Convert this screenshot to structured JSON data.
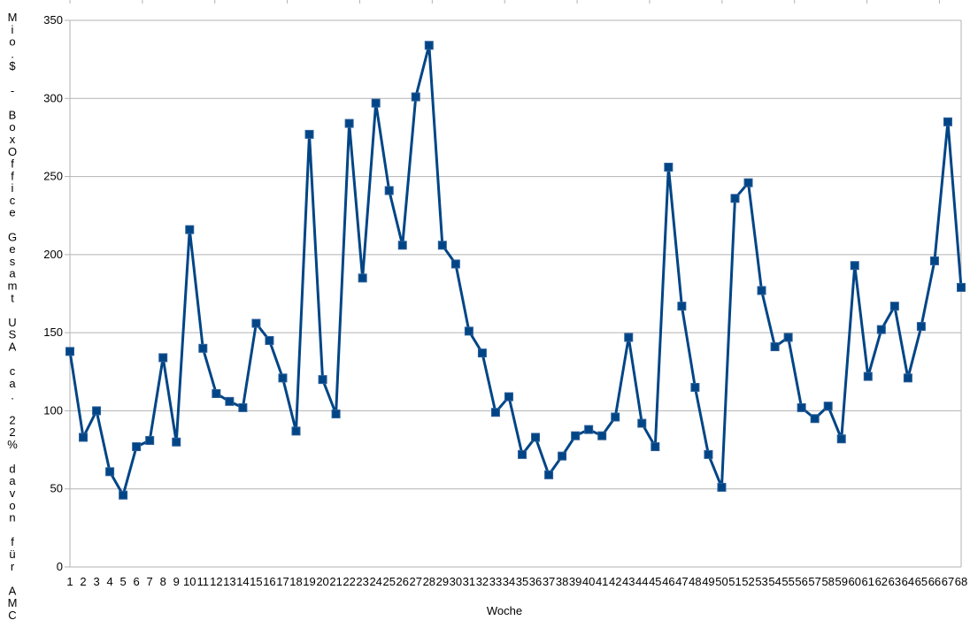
{
  "chart_data": {
    "type": "line",
    "xlabel": "Woche",
    "ylabel": "Mio.$ - BoxOffice Gesamt USA ca. 22% davon für AMC",
    "ylim": [
      0,
      350
    ],
    "yticks": [
      0,
      50,
      100,
      150,
      200,
      250,
      300,
      350
    ],
    "grid": "horizontal",
    "legend": "none",
    "line_color": "#004586",
    "categories": [
      "1",
      "2",
      "3",
      "4",
      "5",
      "6",
      "7",
      "8",
      "9",
      "10",
      "11",
      "12",
      "13",
      "14",
      "15",
      "16",
      "17",
      "18",
      "19",
      "20",
      "21",
      "22",
      "23",
      "24",
      "25",
      "26",
      "27",
      "28",
      "29",
      "30",
      "31",
      "32",
      "33",
      "34",
      "35",
      "36",
      "37",
      "38",
      "39",
      "40",
      "41",
      "42",
      "43",
      "44",
      "45",
      "46",
      "47",
      "48",
      "49",
      "50",
      "51",
      "52",
      "53",
      "54",
      "55",
      "56",
      "57",
      "58",
      "59",
      "60",
      "61",
      "62",
      "63",
      "64",
      "65",
      "66",
      "67",
      "68"
    ],
    "values": [
      138,
      83,
      100,
      61,
      46,
      77,
      81,
      134,
      80,
      216,
      140,
      111,
      106,
      102,
      156,
      145,
      121,
      87,
      277,
      120,
      98,
      284,
      185,
      297,
      241,
      206,
      301,
      334,
      206,
      194,
      151,
      137,
      99,
      109,
      72,
      83,
      59,
      71,
      84,
      88,
      84,
      96,
      147,
      92,
      77,
      256,
      167,
      115,
      72,
      51,
      236,
      246,
      177,
      141,
      147,
      102,
      95,
      103,
      82,
      193,
      122,
      152,
      167,
      121,
      154,
      196,
      285,
      179
    ]
  }
}
